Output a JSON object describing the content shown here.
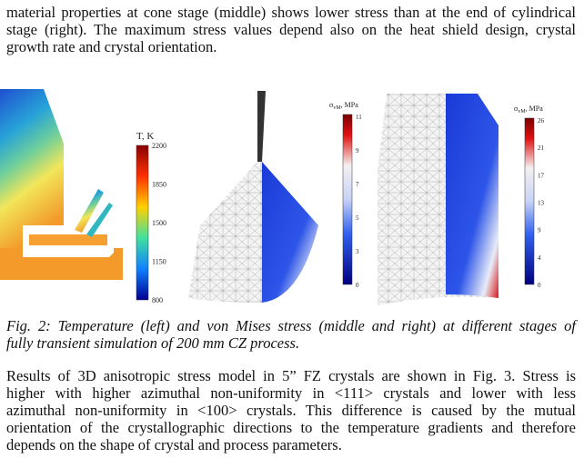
{
  "intro": {
    "lines": [
      "material properties at cone stage (middle) shows lower stress than at the end of cylindrical",
      "stage (right). The maximum stress values depend also on the heat shield design, crystal",
      "growth rate and crystal orientation."
    ]
  },
  "figure": {
    "colorbars": [
      {
        "title": "T, K",
        "ticks": [
          "2200",
          "1850",
          "1500",
          "1150",
          "800"
        ]
      },
      {
        "symbol": "σ",
        "subscript": "vM",
        "unit": ", MPa",
        "ticks": [
          "11",
          "9",
          "7",
          "5",
          "3",
          "0"
        ]
      },
      {
        "symbol": "σ",
        "subscript": "vM",
        "unit": ", MPa",
        "ticks": [
          "26",
          "21",
          "17",
          "13",
          "9",
          "4",
          "0"
        ]
      }
    ]
  },
  "caption": {
    "lines": [
      "Fig. 2: Temperature (left) and von Mises stress (middle and right) at different stages of",
      "fully transient simulation of 200 mm CZ process."
    ]
  },
  "body": {
    "lines": [
      "Results of 3D anisotropic stress model in 5” FZ crystals are shown in Fig. 3. Stress is",
      "higher with higher azimuthal non-uniformity in <111> crystals and lower with less",
      "azimuthal non-uniformity in <100> crystals. This difference is caused by the mutual",
      "orientation of the crystallographic directions to the temperature gradients and therefore",
      "depends on the shape of crystal and process parameters."
    ]
  }
}
